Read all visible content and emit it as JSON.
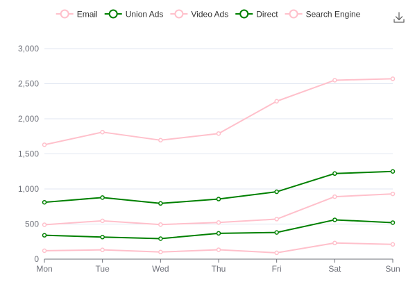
{
  "chart_data": {
    "type": "line",
    "title": "",
    "xlabel": "",
    "ylabel": "",
    "categories": [
      "Mon",
      "Tue",
      "Wed",
      "Thu",
      "Fri",
      "Sat",
      "Sun"
    ],
    "ylim": [
      0,
      3000
    ],
    "yticks": [
      0,
      500,
      1000,
      1500,
      2000,
      2500,
      3000
    ],
    "ytick_labels": [
      "0",
      "500",
      "1,000",
      "1,500",
      "2,000",
      "2,500",
      "3,000"
    ],
    "grid": true,
    "legend_position": "top",
    "toolbox": {
      "icon": "download-icon"
    },
    "series": [
      {
        "name": "Email",
        "color": "#ffc0cb",
        "values": [
          120,
          132,
          101,
          134,
          90,
          230,
          210
        ]
      },
      {
        "name": "Union Ads",
        "color": "#008000",
        "values": [
          220,
          182,
          191,
          234,
          290,
          330,
          310
        ]
      },
      {
        "name": "Video Ads",
        "color": "#ffc0cb",
        "values": [
          150,
          232,
          201,
          154,
          190,
          330,
          410
        ]
      },
      {
        "name": "Direct",
        "color": "#008000",
        "values": [
          320,
          332,
          301,
          334,
          390,
          330,
          320
        ]
      },
      {
        "name": "Search Engine",
        "color": "#ffc0cb",
        "values": [
          820,
          932,
          901,
          934,
          1290,
          1330,
          1320
        ]
      }
    ],
    "stacked": true
  }
}
